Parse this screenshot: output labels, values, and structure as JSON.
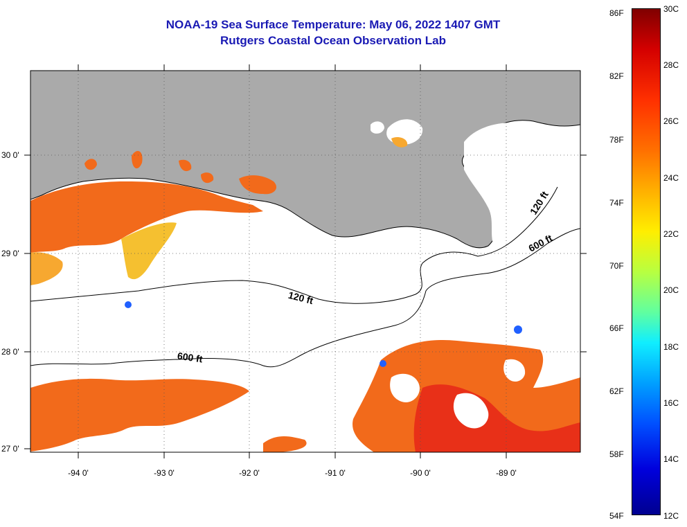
{
  "title": "NOAA-19 Sea Surface Temperature:  May 06, 2022 1407 GMT",
  "subtitle": "Rutgers Coastal Ocean Observation Lab",
  "map": {
    "lat_labels": [
      "30 0'",
      "29 0'",
      "28 0'",
      "27 0'"
    ],
    "lon_labels": [
      "-94 0'",
      "-93 0'",
      "-92 0'",
      "-91 0'",
      "-90 0'",
      "-89 0'"
    ],
    "contours": [
      "120 ft",
      "600 ft",
      "120 ft",
      "600 ft"
    ]
  },
  "colorbar": {
    "fahrenheit_labels": [
      "86F",
      "82F",
      "78F",
      "74F",
      "70F",
      "66F",
      "62F",
      "58F",
      "54F"
    ],
    "celsius_labels": [
      "30C",
      "28C",
      "26C",
      "24C",
      "22C",
      "20C",
      "18C",
      "16C",
      "14C",
      "12C"
    ],
    "colormap": "jet",
    "gradient": [
      "#800000",
      "#d40000",
      "#ff3000",
      "#ff7000",
      "#ffb000",
      "#ffee00",
      "#b8ff40",
      "#60ffa0",
      "#10eeff",
      "#00a0ff",
      "#0050ff",
      "#0000dd",
      "#000090"
    ]
  },
  "colors": {
    "land": "#aaaaaa",
    "cloud": "#ffffff",
    "title": "#1a1ab4",
    "sst_warm": "#f26a1b",
    "sst_hot": "#e83018",
    "sst_mid": "#f7a830",
    "sst_cool": "#f5d238"
  }
}
